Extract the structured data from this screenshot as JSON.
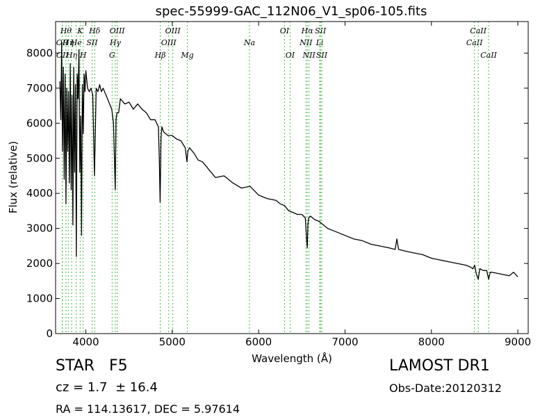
{
  "chart_data": {
    "type": "line",
    "title": "spec-55999-GAC_112N06_V1_sp06-105.fits",
    "xlabel": "Wavelength (Å)",
    "ylabel": "Flux (relative)",
    "xlim": [
      3650,
      9120
    ],
    "ylim": [
      0,
      8900
    ],
    "xticks": [
      4000,
      5000,
      6000,
      7000,
      8000,
      9000
    ],
    "yticks": [
      0,
      1000,
      2000,
      3000,
      4000,
      5000,
      6000,
      7000,
      8000
    ],
    "grid": false,
    "line_color": "#000000",
    "marker_color": "#44bb44",
    "series": [
      {
        "x": [
          3700,
          3710,
          3720,
          3730,
          3740,
          3750,
          3760,
          3770,
          3780,
          3790,
          3800,
          3810,
          3820,
          3830,
          3840,
          3850,
          3860,
          3870,
          3880,
          3890,
          3900,
          3910,
          3920,
          3930,
          3940,
          3950,
          3960,
          3970,
          3980,
          3990,
          4000,
          4020,
          4040,
          4060,
          4080,
          4100,
          4120,
          4140,
          4160,
          4180,
          4200,
          4250,
          4300,
          4320,
          4340,
          4350,
          4360,
          4380,
          4400,
          4450,
          4500,
          4550,
          4600,
          4650,
          4700,
          4750,
          4800,
          4840,
          4850,
          4860,
          4870,
          4880,
          4900,
          4950,
          5000,
          5050,
          5100,
          5150,
          5170,
          5180,
          5200,
          5250,
          5300,
          5350,
          5400,
          5500,
          5600,
          5700,
          5800,
          5900,
          6000,
          6100,
          6200,
          6250,
          6300,
          6350,
          6400,
          6450,
          6500,
          6540,
          6555,
          6563,
          6570,
          6580,
          6600,
          6650,
          6700,
          6800,
          6900,
          7000,
          7100,
          7200,
          7300,
          7400,
          7500,
          7580,
          7600,
          7620,
          7700,
          7800,
          7900,
          8000,
          8100,
          8200,
          8300,
          8400,
          8450,
          8480,
          8500,
          8520,
          8542,
          8560,
          8600,
          8640,
          8662,
          8680,
          8700,
          8800,
          8900,
          8950,
          9000
        ],
        "y": [
          7200,
          6100,
          8300,
          5200,
          7600,
          4400,
          7400,
          3700,
          7000,
          5200,
          6900,
          4300,
          7700,
          4100,
          6800,
          3100,
          7600,
          4600,
          7100,
          2200,
          7400,
          6700,
          8100,
          4600,
          6200,
          2800,
          7100,
          5700,
          7400,
          6900,
          7500,
          7000,
          6900,
          7000,
          6800,
          4500,
          7000,
          6900,
          7100,
          6900,
          7000,
          6700,
          6400,
          6000,
          4100,
          6100,
          6300,
          6300,
          6700,
          6550,
          6600,
          6400,
          6550,
          6400,
          6300,
          6100,
          6100,
          5900,
          5000,
          3750,
          5600,
          5900,
          5750,
          5650,
          5650,
          5550,
          5500,
          5300,
          4900,
          5200,
          5300,
          5150,
          4950,
          4900,
          4750,
          4450,
          4500,
          4300,
          4150,
          4200,
          3950,
          3850,
          3800,
          3700,
          3650,
          3500,
          3450,
          3400,
          3400,
          3300,
          2700,
          2450,
          3100,
          3300,
          3350,
          3250,
          3200,
          3000,
          2900,
          2800,
          2700,
          2650,
          2550,
          2500,
          2450,
          2400,
          2700,
          2400,
          2350,
          2300,
          2250,
          2150,
          2100,
          2050,
          2000,
          1950,
          1900,
          1850,
          1950,
          1700,
          1550,
          1850,
          1800,
          1800,
          1550,
          1750,
          1750,
          1700,
          1650,
          1750,
          1620
        ]
      }
    ],
    "lines": [
      {
        "x": 3727,
        "label": "OII",
        "row": 2
      },
      {
        "x": 3729,
        "label": "OII",
        "row": 3
      },
      {
        "x": 3770,
        "label": "Hθ",
        "row": 1
      },
      {
        "x": 3797,
        "label": "Hη",
        "row": 2
      },
      {
        "x": 3835,
        "label": "Hη",
        "row": 3
      },
      {
        "x": 3889,
        "label": "He",
        "row": 2
      },
      {
        "x": 3934,
        "label": "K",
        "row": 1
      },
      {
        "x": 3969,
        "label": "H",
        "row": 3
      },
      {
        "x": 4072,
        "label": "SII",
        "row": 2
      },
      {
        "x": 4102,
        "label": "Hδ",
        "row": 1
      },
      {
        "x": 4304,
        "label": "G",
        "row": 3
      },
      {
        "x": 4341,
        "label": "Hγ",
        "row": 2
      },
      {
        "x": 4363,
        "label": "OIII",
        "row": 1
      },
      {
        "x": 4861,
        "label": "Hβ",
        "row": 3
      },
      {
        "x": 4959,
        "label": "OIII",
        "row": 2
      },
      {
        "x": 5007,
        "label": "OIII",
        "row": 1
      },
      {
        "x": 5175,
        "label": "Mg",
        "row": 3
      },
      {
        "x": 5894,
        "label": "Na",
        "row": 2
      },
      {
        "x": 6300,
        "label": "OI",
        "row": 1
      },
      {
        "x": 6364,
        "label": "OI",
        "row": 3
      },
      {
        "x": 6548,
        "label": "NII",
        "row": 2
      },
      {
        "x": 6563,
        "label": "Hα",
        "row": 1
      },
      {
        "x": 6583,
        "label": "NII",
        "row": 3
      },
      {
        "x": 6707,
        "label": "Li",
        "row": 2
      },
      {
        "x": 6716,
        "label": "SII",
        "row": 1
      },
      {
        "x": 6731,
        "label": "SII",
        "row": 3
      },
      {
        "x": 8498,
        "label": "CaII",
        "row": 2
      },
      {
        "x": 8542,
        "label": "CaII",
        "row": 1
      },
      {
        "x": 8662,
        "label": "CaII",
        "row": 3
      }
    ]
  },
  "info": {
    "class": "STAR   F5",
    "survey": "LAMOST DR1",
    "cz": "cz = 1.7  ± 16.4",
    "obs_date": "Obs-Date:20120312",
    "radec": "RA = 114.13617, DEC = 5.97614"
  }
}
